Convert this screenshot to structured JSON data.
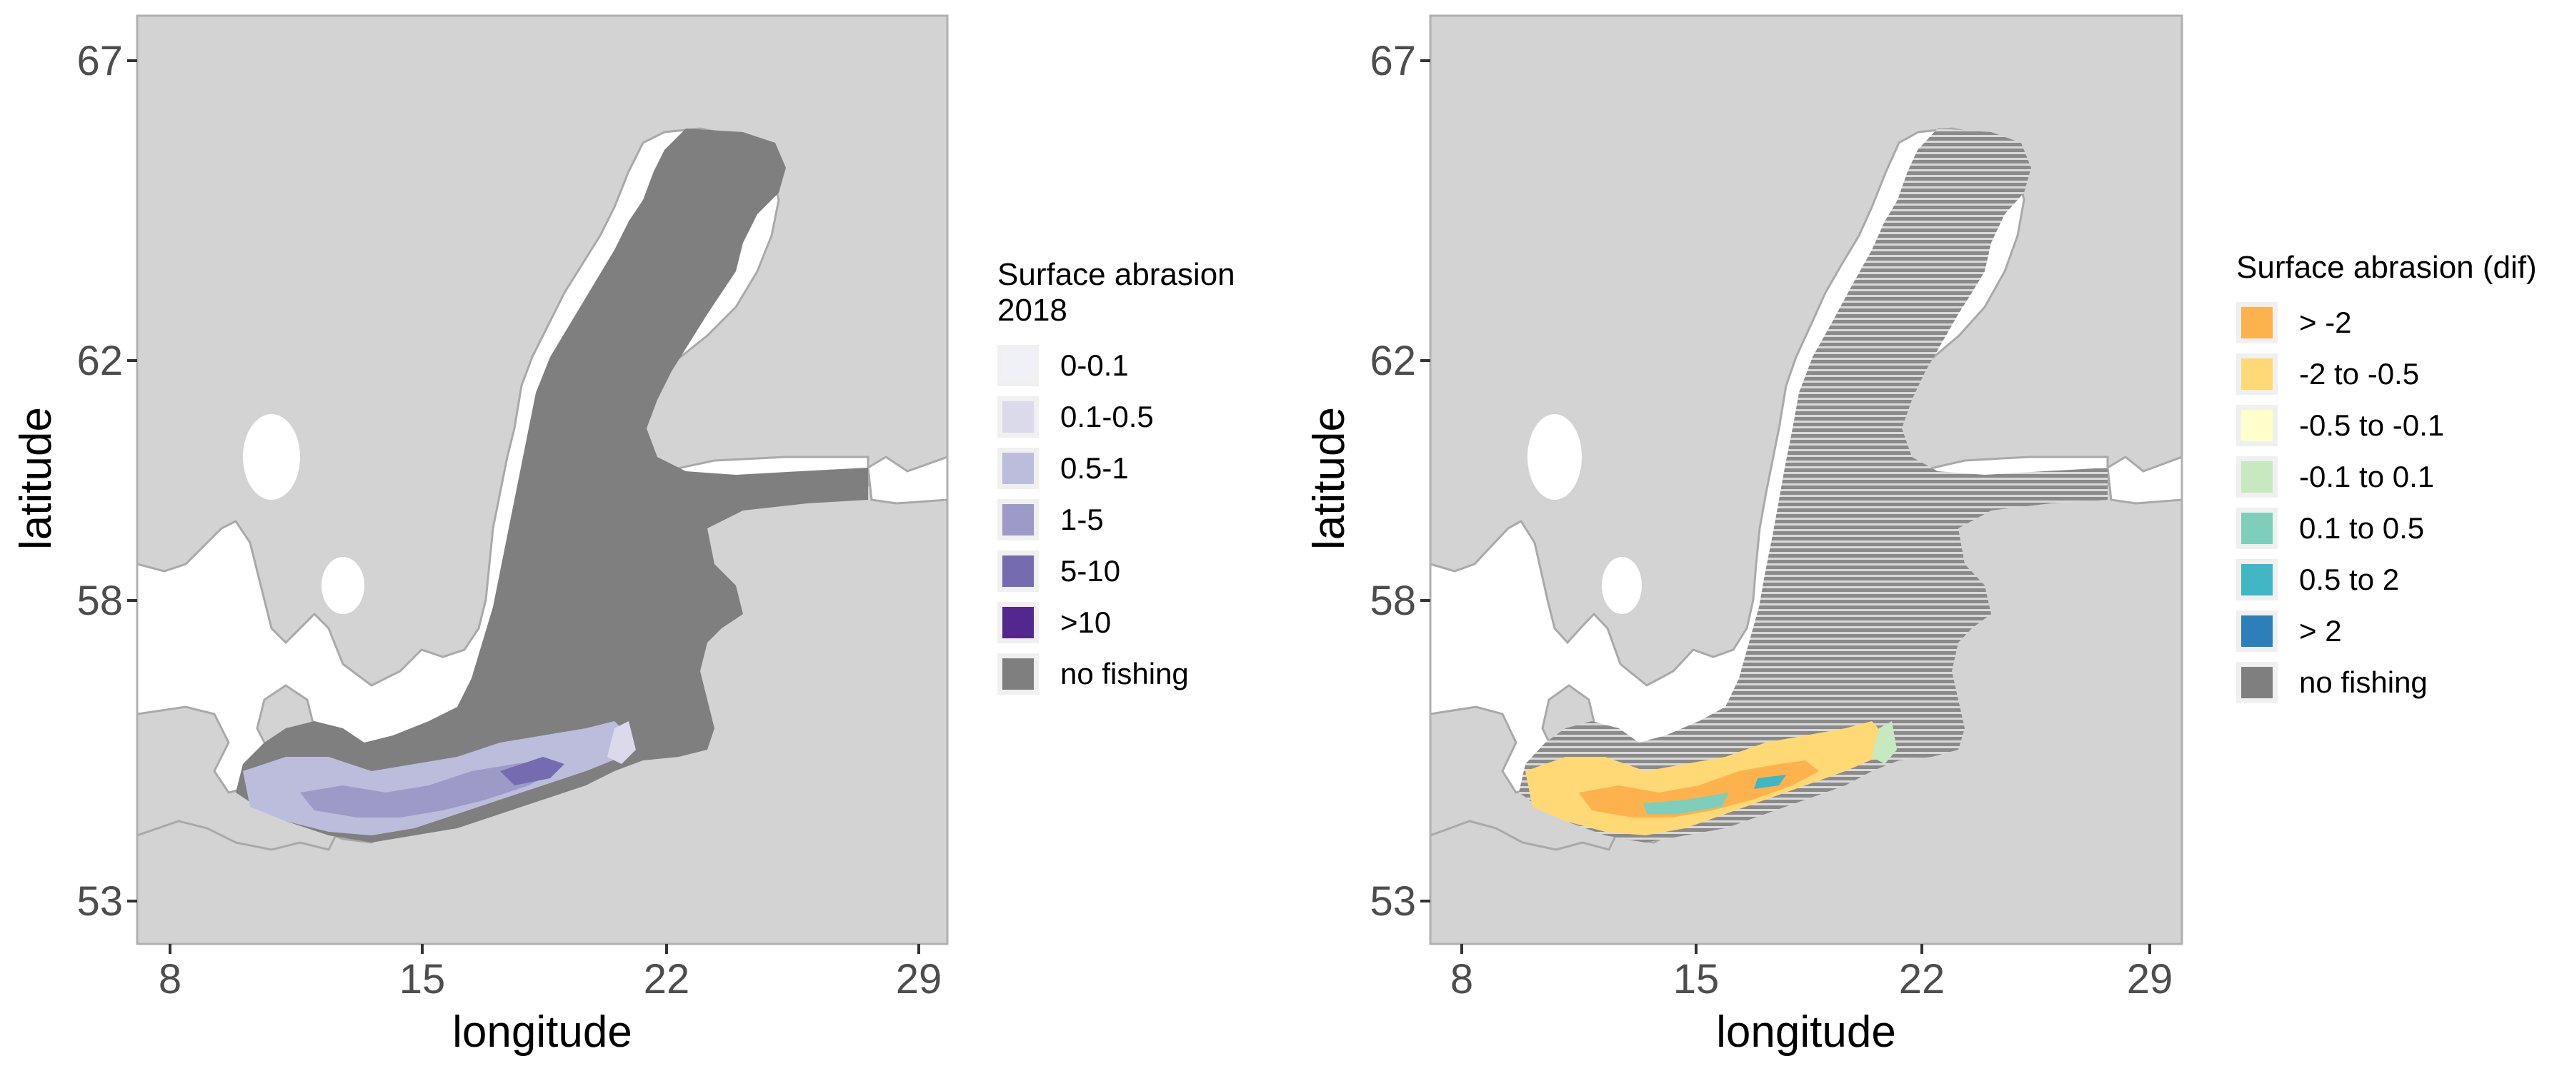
{
  "colors": {
    "land": "#d3d3d3",
    "land_border": "#a9a9a9",
    "water_outside": "#ffffff",
    "no_fishing": "#7f7f7f",
    "frame": "#b0b0b0"
  },
  "panels": [
    {
      "id": "left",
      "xlabel": "longitude",
      "ylabel": "latitude",
      "x_ticks": [
        "8",
        "15",
        "22",
        "29"
      ],
      "y_ticks": [
        "67",
        "62",
        "58",
        "53"
      ],
      "legend": {
        "title": "Surface abrasion\n 2018",
        "items": [
          {
            "label": "0-0.1",
            "color": "#f0f0f7"
          },
          {
            "label": "0.1-0.5",
            "color": "#dadaeb"
          },
          {
            "label": "0.5-1",
            "color": "#bcbddc"
          },
          {
            "label": "1-5",
            "color": "#9e9ac8"
          },
          {
            "label": "5-10",
            "color": "#756bb1"
          },
          {
            "label": ">10",
            "color": "#54278f"
          },
          {
            "label": "no fishing",
            "color": "#7f7f7f"
          }
        ]
      }
    },
    {
      "id": "right",
      "xlabel": "longitude",
      "ylabel": "latitude",
      "x_ticks": [
        "8",
        "15",
        "22",
        "29"
      ],
      "y_ticks": [
        "67",
        "62",
        "58",
        "53"
      ],
      "legend": {
        "title": "Surface abrasion (dif)",
        "items": [
          {
            "label": "> -2",
            "color": "#fdb24d"
          },
          {
            "label": "-2 to -0.5",
            "color": "#fed976"
          },
          {
            "label": "-0.5 to -0.1",
            "color": "#ffffcc"
          },
          {
            "label": "-0.1 to 0.1",
            "color": "#c7e9c0"
          },
          {
            "label": "0.1 to 0.5",
            "color": "#7fcdbb"
          },
          {
            "label": "0.5 to 2",
            "color": "#41b6c4"
          },
          {
            "label": "> 2",
            "color": "#2c7fb8"
          },
          {
            "label": "no fishing",
            "color": "#7f7f7f"
          }
        ]
      }
    }
  ]
}
